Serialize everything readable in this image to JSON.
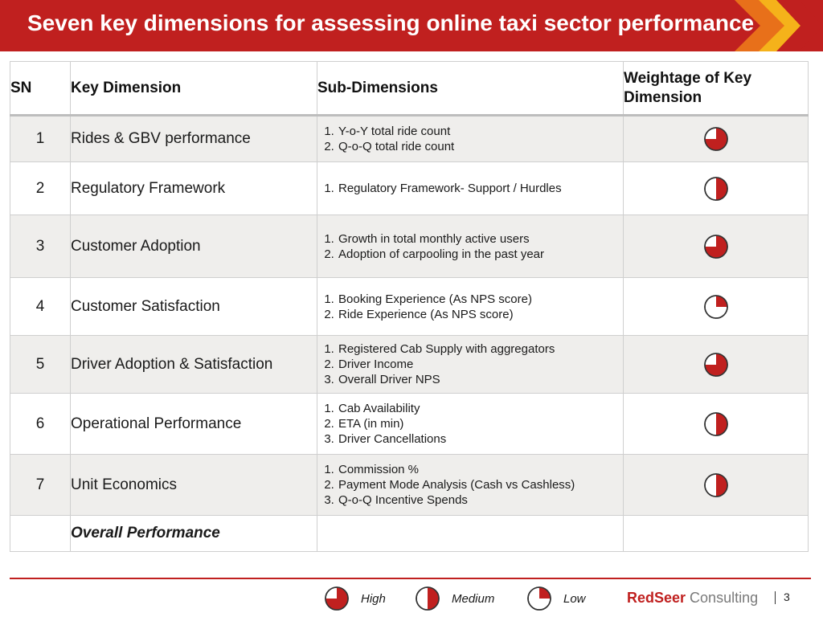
{
  "title": "Seven key dimensions for assessing online taxi sector performance",
  "colors": {
    "accent": "#c0201f",
    "chevron_orange": "#e8701a",
    "chevron_yellow": "#f5b21a"
  },
  "table": {
    "headers": {
      "sn": "SN",
      "key_dimension": "Key Dimension",
      "sub_dimensions": "Sub-Dimensions",
      "weightage": "Weightage of Key Dimension"
    },
    "rows": [
      {
        "sn": "1",
        "key_dimension": "Rides & GBV performance",
        "sub_dimensions": [
          "Y-o-Y total ride count",
          "Q-o-Q total ride count"
        ],
        "weightage": "High",
        "weightage_fraction": 0.75
      },
      {
        "sn": "2",
        "key_dimension": "Regulatory Framework",
        "sub_dimensions": [
          "Regulatory Framework- Support / Hurdles"
        ],
        "weightage": "Medium",
        "weightage_fraction": 0.5
      },
      {
        "sn": "3",
        "key_dimension": "Customer Adoption",
        "sub_dimensions": [
          "Growth in total monthly active users",
          "Adoption of carpooling in the past year"
        ],
        "weightage": "High",
        "weightage_fraction": 0.75
      },
      {
        "sn": "4",
        "key_dimension": "Customer Satisfaction",
        "sub_dimensions": [
          "Booking Experience (As NPS score)",
          "Ride Experience (As NPS score)"
        ],
        "weightage": "Low",
        "weightage_fraction": 0.25
      },
      {
        "sn": "5",
        "key_dimension": "Driver Adoption & Satisfaction",
        "sub_dimensions": [
          "Registered Cab Supply with aggregators",
          "Driver Income",
          "Overall Driver NPS"
        ],
        "weightage": "High",
        "weightage_fraction": 0.75
      },
      {
        "sn": "6",
        "key_dimension": "Operational Performance",
        "sub_dimensions": [
          "Cab Availability",
          "ETA (in min)",
          "Driver Cancellations"
        ],
        "weightage": "Medium",
        "weightage_fraction": 0.5
      },
      {
        "sn": "7",
        "key_dimension": "Unit Economics",
        "sub_dimensions": [
          "Commission %",
          "Payment Mode Analysis (Cash vs Cashless)",
          "Q-o-Q Incentive Spends"
        ],
        "weightage": "Medium",
        "weightage_fraction": 0.5
      }
    ],
    "overall_label": "Overall Performance"
  },
  "legend": [
    {
      "label": "High",
      "fraction": 0.75,
      "icon": "harvey-ball-three-quarter-icon"
    },
    {
      "label": "Medium",
      "fraction": 0.5,
      "icon": "harvey-ball-half-icon"
    },
    {
      "label": "Low",
      "fraction": 0.25,
      "icon": "harvey-ball-quarter-icon"
    }
  ],
  "brand": {
    "red_part": "RedSeer",
    "grey_part": " Consulting"
  },
  "page_number": "3"
}
